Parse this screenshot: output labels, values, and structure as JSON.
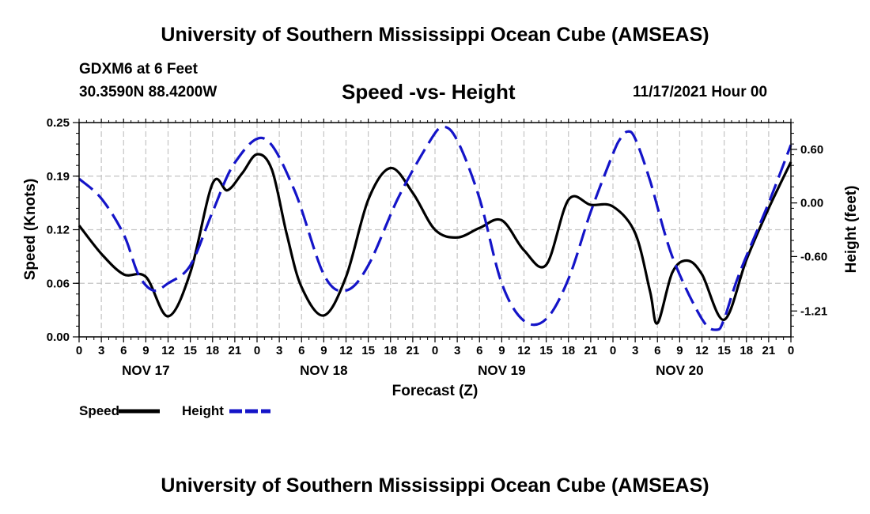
{
  "header": {
    "title": "University of Southern Mississippi Ocean Cube (AMSEAS)",
    "station": "GDXM6 at 6 Feet",
    "coordinates": "30.3590N  88.4200W",
    "subtitle": "Speed -vs- Height",
    "datetime": "11/17/2021 Hour 00"
  },
  "footer": {
    "title": "University of Southern Mississippi Ocean Cube (AMSEAS)"
  },
  "chart_data": {
    "type": "line",
    "title": "Speed -vs- Height",
    "xlabel": "Forecast (Z)",
    "ylabel": "Speed (Knots)",
    "y2label": "Height (feet)",
    "xlim": [
      0,
      96
    ],
    "ylim": [
      0,
      0.25
    ],
    "y2lim": [
      -1.5,
      0.9
    ],
    "grid": true,
    "x_tick_labels": [
      "0",
      "3",
      "6",
      "9",
      "12",
      "15",
      "18",
      "21",
      "0",
      "3",
      "6",
      "9",
      "12",
      "15",
      "18",
      "21",
      "0",
      "3",
      "6",
      "9",
      "12",
      "15",
      "18",
      "21",
      "0",
      "3",
      "6",
      "9",
      "12",
      "15",
      "18",
      "21",
      "0"
    ],
    "y_ticks": [
      "0.00",
      "0.06",
      "0.12",
      "0.19",
      "0.25"
    ],
    "y_tick_values": [
      0,
      0.0625,
      0.125,
      0.1875,
      0.25
    ],
    "y2_ticks": [
      "0.60",
      "0.00",
      "-0.60",
      "-1.21"
    ],
    "y2_tick_values": [
      0.6,
      0.0,
      -0.6,
      -1.21
    ],
    "day_labels": [
      {
        "label": "NOV 17",
        "hour": 9
      },
      {
        "label": "NOV 18",
        "hour": 33
      },
      {
        "label": "NOV 19",
        "hour": 57
      },
      {
        "label": "NOV 20",
        "hour": 81
      }
    ],
    "series": [
      {
        "name": "Speed",
        "color": "#000000",
        "axis": "left",
        "style": "solid",
        "points": [
          [
            0,
            0.13
          ],
          [
            3,
            0.097
          ],
          [
            6,
            0.073
          ],
          [
            9,
            0.07
          ],
          [
            12,
            0.024
          ],
          [
            15,
            0.075
          ],
          [
            18,
            0.179
          ],
          [
            20,
            0.171
          ],
          [
            22,
            0.191
          ],
          [
            24,
            0.213
          ],
          [
            26,
            0.195
          ],
          [
            28,
            0.12
          ],
          [
            30,
            0.058
          ],
          [
            33,
            0.025
          ],
          [
            36,
            0.07
          ],
          [
            39,
            0.16
          ],
          [
            42,
            0.197
          ],
          [
            45,
            0.168
          ],
          [
            48,
            0.125
          ],
          [
            51,
            0.116
          ],
          [
            54,
            0.127
          ],
          [
            57,
            0.136
          ],
          [
            60,
            0.101
          ],
          [
            63,
            0.084
          ],
          [
            66,
            0.16
          ],
          [
            69,
            0.154
          ],
          [
            72,
            0.152
          ],
          [
            75,
            0.121
          ],
          [
            77,
            0.053
          ],
          [
            78,
            0.016
          ],
          [
            80,
            0.075
          ],
          [
            82,
            0.089
          ],
          [
            84,
            0.073
          ],
          [
            87,
            0.02
          ],
          [
            90,
            0.09
          ],
          [
            93,
            0.15
          ],
          [
            96,
            0.204
          ]
        ]
      },
      {
        "name": "Height",
        "color": "#1414c8",
        "axis": "right",
        "style": "dashed",
        "points": [
          [
            0,
            0.27
          ],
          [
            3,
            0.05
          ],
          [
            6,
            -0.35
          ],
          [
            8,
            -0.8
          ],
          [
            10,
            -0.98
          ],
          [
            12,
            -0.9
          ],
          [
            15,
            -0.7
          ],
          [
            18,
            -0.1
          ],
          [
            21,
            0.45
          ],
          [
            25,
            0.72
          ],
          [
            29,
            0.15
          ],
          [
            33,
            -0.8
          ],
          [
            36,
            -0.98
          ],
          [
            39,
            -0.7
          ],
          [
            43,
            0.05
          ],
          [
            47,
            0.65
          ],
          [
            49,
            0.85
          ],
          [
            51,
            0.7
          ],
          [
            54,
            0.05
          ],
          [
            57,
            -0.9
          ],
          [
            60,
            -1.32
          ],
          [
            63,
            -1.3
          ],
          [
            66,
            -0.85
          ],
          [
            69,
            -0.1
          ],
          [
            72,
            0.55
          ],
          [
            73,
            0.72
          ],
          [
            74,
            0.8
          ],
          [
            75,
            0.72
          ],
          [
            77,
            0.25
          ],
          [
            80,
            -0.6
          ],
          [
            84,
            -1.3
          ],
          [
            86,
            -1.42
          ],
          [
            87,
            -1.3
          ],
          [
            89,
            -0.8
          ],
          [
            93,
            0.0
          ],
          [
            96,
            0.65
          ]
        ]
      }
    ],
    "legend": [
      {
        "label": "Speed",
        "color": "#000000",
        "style": "solid"
      },
      {
        "label": "Height",
        "color": "#1414c8",
        "style": "dashed"
      }
    ]
  }
}
